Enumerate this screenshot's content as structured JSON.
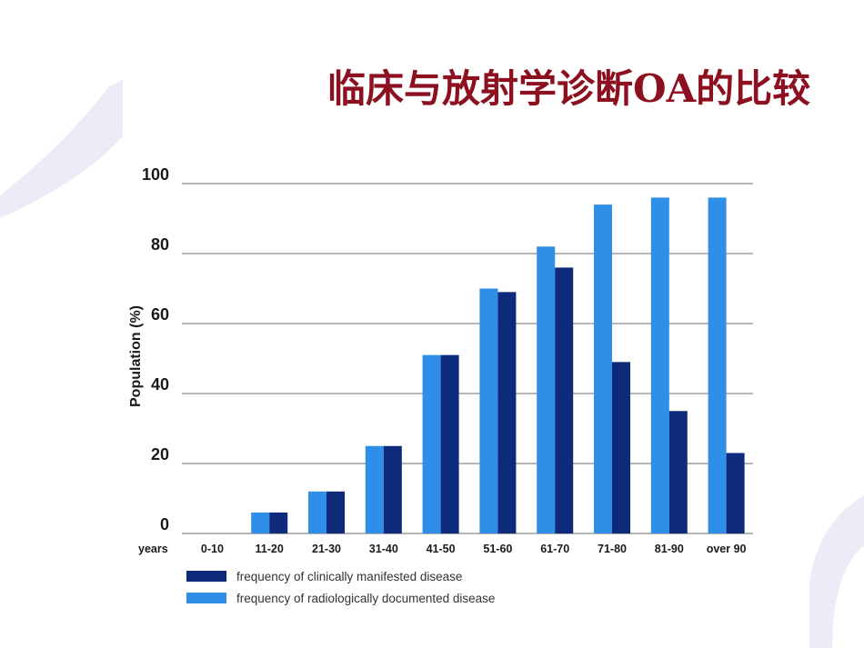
{
  "slide": {
    "title": "临床与放射学诊断OA的比较"
  },
  "colors": {
    "clinical": "#0e2a7a",
    "radiological": "#2f8fe8",
    "grid": "#8a8a8a",
    "title": "#8c1020",
    "decoration": "#ececf8"
  },
  "chart_data": {
    "type": "bar",
    "title": "",
    "xlabel": "years",
    "ylabel": "Population (%)",
    "ylim": [
      0,
      100
    ],
    "yticks": [
      "0",
      "20",
      "40",
      "60",
      "80",
      "100"
    ],
    "grid": true,
    "legend_position": "bottom",
    "categories": [
      "0-10",
      "11-20",
      "21-30",
      "31-40",
      "41-50",
      "51-60",
      "61-70",
      "71-80",
      "81-90",
      "over 90"
    ],
    "series": [
      {
        "name": "frequency of radiologically documented disease",
        "color": "#2f8fe8",
        "values": [
          0,
          6,
          12,
          25,
          51,
          70,
          82,
          94,
          96,
          96
        ]
      },
      {
        "name": "frequency of clinically manifested disease",
        "color": "#0e2a7a",
        "values": [
          0,
          6,
          12,
          25,
          51,
          69,
          76,
          49,
          35,
          23
        ]
      }
    ],
    "legend": [
      {
        "label": "frequency of clinically manifested disease",
        "color": "#0e2a7a"
      },
      {
        "label": "frequency of radiologically documented disease",
        "color": "#2f8fe8"
      }
    ]
  }
}
